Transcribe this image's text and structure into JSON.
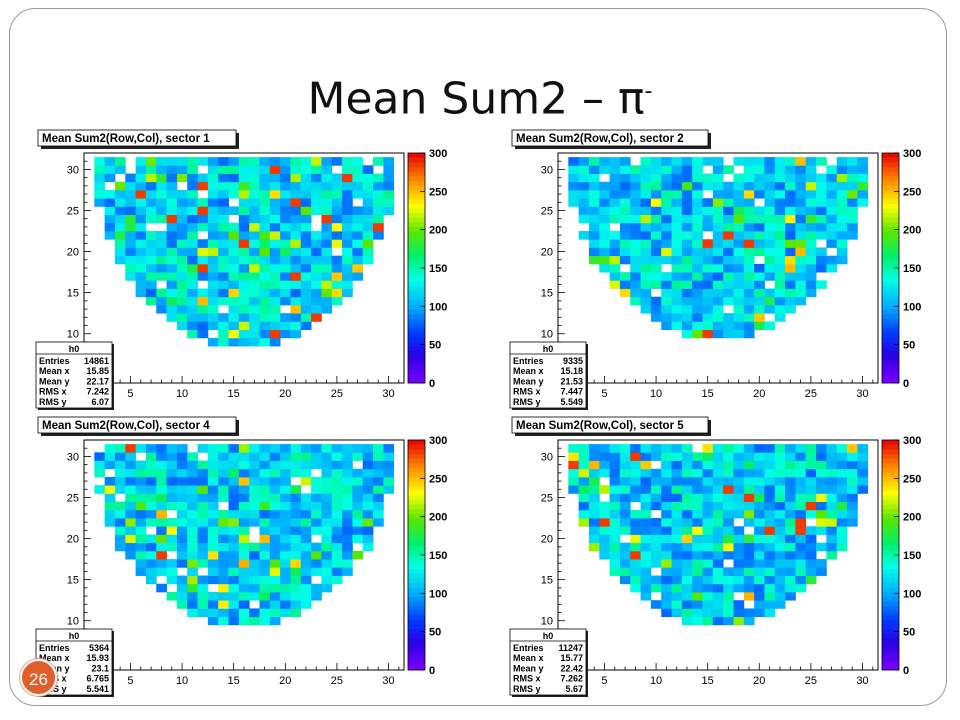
{
  "slide": {
    "title": "Mean Sum2 – π",
    "title_superscript": "-",
    "page_number": "26"
  },
  "chart_data": [
    {
      "type": "heatmap",
      "title": "Mean Sum2(Row,Col), sector 1",
      "x_ticks": [
        5,
        10,
        15,
        20,
        25,
        30
      ],
      "y_ticks": [
        10,
        15,
        20,
        25,
        30
      ],
      "xlim": [
        0.5,
        31.5
      ],
      "ylim": [
        4,
        32
      ],
      "z_ticks": [
        0,
        50,
        100,
        150,
        200,
        250,
        300
      ],
      "zlim": [
        0,
        300
      ],
      "seed": 11,
      "coverage_min_row": 9,
      "stats": {
        "name": "h0",
        "Entries": "14861",
        "Mean x": "15.85",
        "Mean y": "22.17",
        "RMS x": "7.242",
        "RMS y": "6.07"
      }
    },
    {
      "type": "heatmap",
      "title": "Mean Sum2(Row,Col), sector 2",
      "x_ticks": [
        5,
        10,
        15,
        20,
        25,
        30
      ],
      "y_ticks": [
        10,
        15,
        20,
        25,
        30
      ],
      "xlim": [
        0.5,
        31.5
      ],
      "ylim": [
        4,
        32
      ],
      "z_ticks": [
        0,
        50,
        100,
        150,
        200,
        250,
        300
      ],
      "zlim": [
        0,
        300
      ],
      "seed": 27,
      "coverage_min_row": 10,
      "stats": {
        "name": "h0",
        "Entries": "9335",
        "Mean x": "15.18",
        "Mean y": "21.53",
        "RMS x": "7.447",
        "RMS y": "5.549"
      }
    },
    {
      "type": "heatmap",
      "title": "Mean Sum2(Row,Col), sector 4",
      "x_ticks": [
        5,
        10,
        15,
        20,
        25,
        30
      ],
      "y_ticks": [
        10,
        15,
        20,
        25,
        30
      ],
      "xlim": [
        0.5,
        31.5
      ],
      "ylim": [
        4,
        32
      ],
      "z_ticks": [
        0,
        50,
        100,
        150,
        200,
        250,
        300
      ],
      "zlim": [
        0,
        300
      ],
      "seed": 43,
      "coverage_min_row": 10,
      "stats": {
        "name": "h0",
        "Entries": "5364",
        "Mean x": "15.93",
        "Mean y": "23.1",
        "RMS x": "6.765",
        "RMS y": "5.541"
      }
    },
    {
      "type": "heatmap",
      "title": "Mean Sum2(Row,Col), sector 5",
      "x_ticks": [
        5,
        10,
        15,
        20,
        25,
        30
      ],
      "y_ticks": [
        10,
        15,
        20,
        25,
        30
      ],
      "xlim": [
        0.5,
        31.5
      ],
      "ylim": [
        4,
        32
      ],
      "z_ticks": [
        0,
        50,
        100,
        150,
        200,
        250,
        300
      ],
      "zlim": [
        0,
        300
      ],
      "seed": 59,
      "coverage_min_row": 10,
      "stats": {
        "name": "h0",
        "Entries": "11247",
        "Mean x": "15.77",
        "Mean y": "22.42",
        "RMS x": "7.262",
        "RMS y": "5.67"
      }
    }
  ]
}
